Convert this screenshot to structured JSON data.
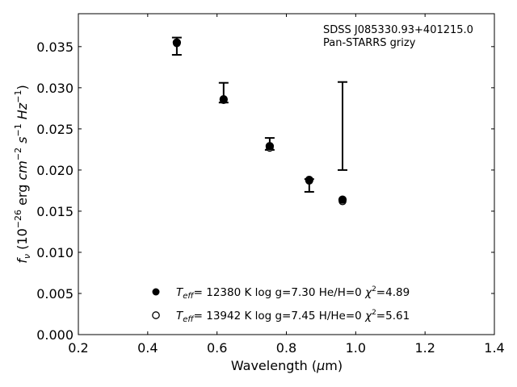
{
  "chart_data": {
    "type": "scatter",
    "title": "",
    "xlabel": "Wavelength (μm)",
    "xlabel_parts": {
      "main": "Wavelength (",
      "mu": "μ",
      "unit": "m)"
    },
    "ylabel": "f_ν (10^-26 erg cm^-2 s^-1 Hz^-1)",
    "xlim": [
      0.2,
      1.4
    ],
    "ylim": [
      0.0,
      0.039
    ],
    "xticks": [
      0.2,
      0.4,
      0.6,
      0.8,
      1.0,
      1.2,
      1.4
    ],
    "xtick_labels": [
      "0.2",
      "0.4",
      "0.6",
      "0.8",
      "1.0",
      "1.2",
      "1.4"
    ],
    "yticks": [
      0.0,
      0.005,
      0.01,
      0.015,
      0.02,
      0.025,
      0.03,
      0.035
    ],
    "ytick_labels": [
      "0.000",
      "0.005",
      "0.010",
      "0.015",
      "0.020",
      "0.025",
      "0.030",
      "0.035"
    ],
    "grid": false,
    "annotation": [
      "SDSS J085330.93+401215.0",
      "Pan-STARRS grizy"
    ],
    "observed": {
      "name": "Pan-STARRS grizy",
      "x": [
        0.484,
        0.619,
        0.752,
        0.866,
        0.962
      ],
      "y_low": [
        0.034,
        0.0282,
        0.02245,
        0.01735,
        0.02
      ],
      "y_high": [
        0.0361,
        0.0306,
        0.0239,
        0.0189,
        0.0307
      ]
    },
    "series": [
      {
        "name": "Teff= 12380 K  log g=7.30  He/H=0  χ2=4.89",
        "marker": "filled",
        "legend": {
          "teff": "= 12380 K  log g=7.30  He/H=0  ",
          "chi": "=4.89"
        },
        "x": [
          0.484,
          0.619,
          0.752,
          0.866,
          0.962
        ],
        "y": [
          0.0355,
          0.0286,
          0.0229,
          0.0188,
          0.0164
        ]
      },
      {
        "name": "Teff= 13942 K  log g=7.45  H/He=0  χ2=5.61",
        "marker": "open",
        "legend": {
          "teff": "= 13942 K  log g=7.45  H/He=0  ",
          "chi": "=5.61"
        },
        "x": [
          0.484,
          0.619,
          0.752,
          0.866,
          0.962
        ],
        "y": [
          0.0354,
          0.0285,
          0.0227,
          0.0187,
          0.0162
        ]
      }
    ],
    "legend_position": "bottom-center"
  }
}
